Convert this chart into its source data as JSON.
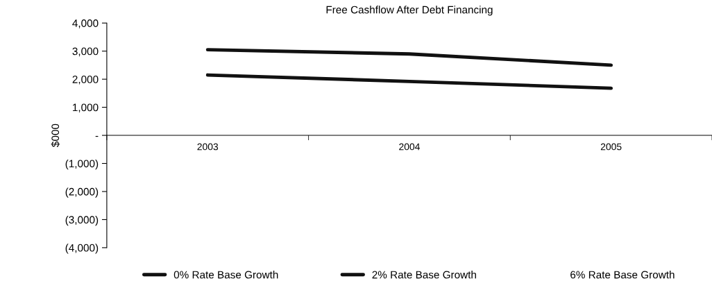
{
  "chart_data": {
    "type": "line",
    "title": "Free Cashflow After Debt Financing",
    "ylabel": "$000",
    "categories": [
      "2003",
      "2004",
      "2005"
    ],
    "series": [
      {
        "name": "0% Rate Base Growth",
        "color": "#111111",
        "values": [
          3050,
          2900,
          2500
        ]
      },
      {
        "name": "2% Rate Base Growth",
        "color": "#111111",
        "values": [
          2150,
          1920,
          1680
        ]
      },
      {
        "name": "6% Rate Base Growth",
        "values": [
          null,
          null,
          null
        ]
      }
    ],
    "ylim": [
      -4000,
      4000
    ],
    "yticks": [
      {
        "value": 4000,
        "label": "4,000"
      },
      {
        "value": 3000,
        "label": "3,000"
      },
      {
        "value": 2000,
        "label": "2,000"
      },
      {
        "value": 1000,
        "label": "1,000"
      },
      {
        "value": 0,
        "label": "-"
      },
      {
        "value": -1000,
        "label": "(1,000)"
      },
      {
        "value": -2000,
        "label": "(2,000)"
      },
      {
        "value": -3000,
        "label": "(3,000)"
      },
      {
        "value": -4000,
        "label": "(4,000)"
      }
    ],
    "grid": false,
    "legend": "bottom",
    "marker": "none",
    "line_style": "solid"
  }
}
